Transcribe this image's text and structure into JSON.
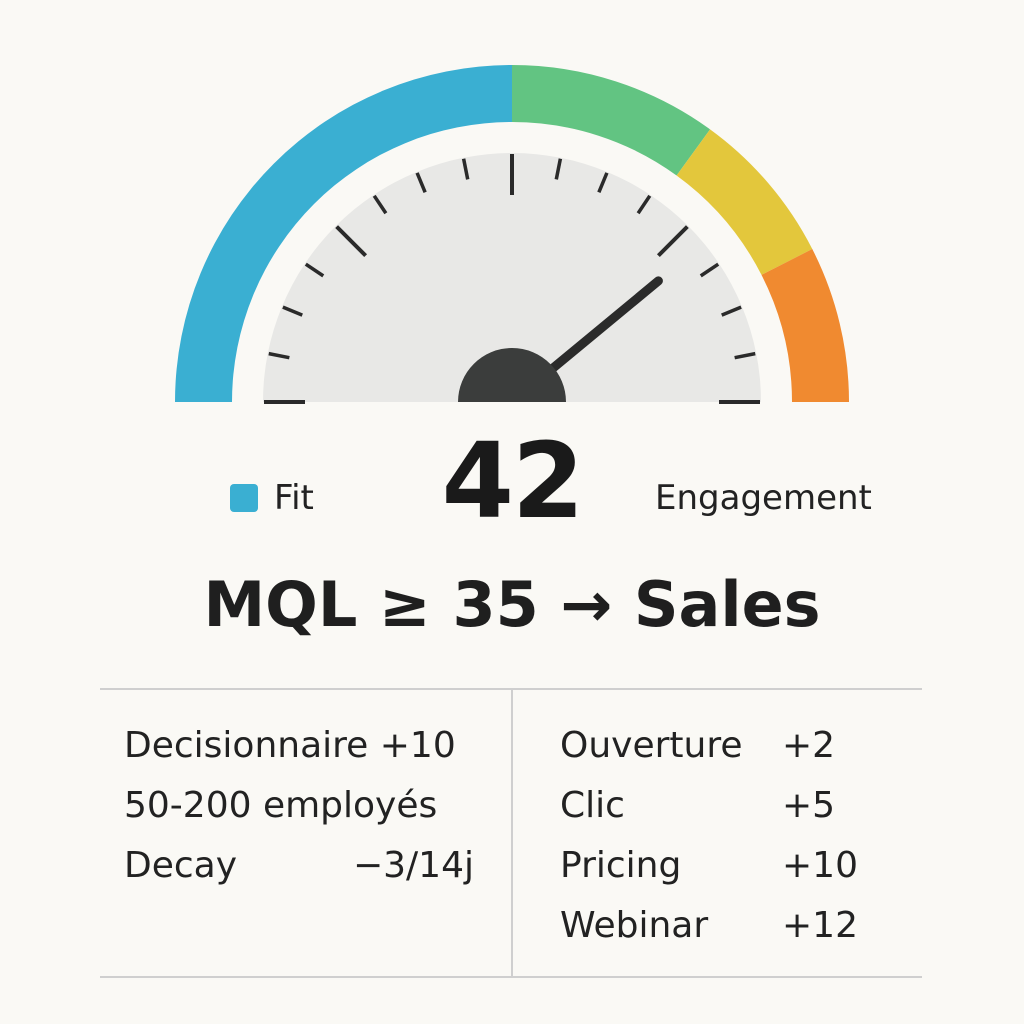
{
  "gauge": {
    "score": 42,
    "min": 0,
    "max": 100,
    "segments": [
      {
        "name": "Fit",
        "color": "#3aafd2",
        "from": 0,
        "to": 50
      },
      {
        "name": "Engagement",
        "color": "#62c482",
        "from": 50,
        "to": 70
      },
      {
        "name": "",
        "color": "#e3c73c",
        "from": 70,
        "to": 85
      },
      {
        "name": "",
        "color": "#f08a30",
        "from": 85,
        "to": 100
      }
    ]
  },
  "legend": {
    "fit_label": "Fit",
    "fit_color": "#3aafd2",
    "engagement_label": "Engagement"
  },
  "score_text": "42",
  "rule_text": "MQL ≥ 35 → Sales",
  "fit_criteria": [
    {
      "label": "Decisionnaire +10",
      "points": ""
    },
    {
      "label": "50-200 employés",
      "points": ""
    },
    {
      "label": "Decay",
      "points": "−3/14j"
    }
  ],
  "engagement_criteria": [
    {
      "label": "Ouverture",
      "points": "+2"
    },
    {
      "label": "Clic",
      "points": "+5"
    },
    {
      "label": "Pricing",
      "points": "+10"
    },
    {
      "label": "Webinar",
      "points": "+12"
    }
  ]
}
